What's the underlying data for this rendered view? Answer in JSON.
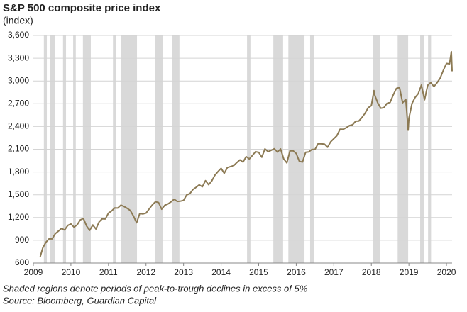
{
  "chart_data": {
    "type": "line",
    "title": "S&P 500 composite price index",
    "subtitle": "(index)",
    "notes": [
      "Shaded regions denote periods of peak-to-trough declines in excess of 5%",
      "Source: Bloomberg, Guardian Capital"
    ],
    "color": "#8c7a54",
    "shade_color": "#d9d9d9",
    "grid": true,
    "xlim": [
      2009,
      2020.15
    ],
    "xticks": [
      2009,
      2010,
      2011,
      2012,
      2013,
      2014,
      2015,
      2016,
      2017,
      2018,
      2019,
      2020
    ],
    "ylim": [
      600,
      3600
    ],
    "yticks": [
      600,
      900,
      {
        "value": 1200,
        "label": "1,200"
      },
      {
        "value": 1500,
        "label": "1,500"
      },
      {
        "value": 1800,
        "label": "1,800"
      },
      {
        "value": 2100,
        "label": "2,100"
      },
      {
        "value": 2400,
        "label": "2,400"
      },
      {
        "value": 2700,
        "label": "2,700"
      },
      {
        "value": 3000,
        "label": "3,000"
      },
      {
        "value": 3300,
        "label": "3,300"
      },
      {
        "value": 3600,
        "label": "3,600"
      }
    ],
    "shaded_regions": [
      [
        2009.28,
        2009.36
      ],
      [
        2009.45,
        2009.57
      ],
      [
        2009.79,
        2009.87
      ],
      [
        2010.06,
        2010.13
      ],
      [
        2010.32,
        2010.53
      ],
      [
        2011.12,
        2011.21
      ],
      [
        2011.33,
        2011.76
      ],
      [
        2012.25,
        2012.44
      ],
      [
        2012.7,
        2012.89
      ],
      [
        2014.69,
        2014.78
      ],
      [
        2015.39,
        2015.65
      ],
      [
        2015.79,
        2016.22
      ],
      [
        2016.37,
        2016.47
      ],
      [
        2018.05,
        2018.24
      ],
      [
        2018.7,
        2018.98
      ],
      [
        2019.3,
        2019.4
      ],
      [
        2019.51,
        2019.59
      ]
    ],
    "x": [
      2009.18,
      2009.25,
      2009.333,
      2009.417,
      2009.5,
      2009.583,
      2009.667,
      2009.75,
      2009.833,
      2009.917,
      2010.0,
      2010.083,
      2010.167,
      2010.25,
      2010.333,
      2010.417,
      2010.5,
      2010.583,
      2010.667,
      2010.75,
      2010.833,
      2010.917,
      2011.0,
      2011.083,
      2011.167,
      2011.25,
      2011.333,
      2011.417,
      2011.5,
      2011.583,
      2011.667,
      2011.75,
      2011.833,
      2011.917,
      2012.0,
      2012.083,
      2012.167,
      2012.25,
      2012.333,
      2012.417,
      2012.5,
      2012.583,
      2012.667,
      2012.75,
      2012.833,
      2012.917,
      2013.0,
      2013.083,
      2013.167,
      2013.25,
      2013.333,
      2013.417,
      2013.5,
      2013.583,
      2013.667,
      2013.75,
      2013.833,
      2013.917,
      2014.0,
      2014.083,
      2014.167,
      2014.25,
      2014.333,
      2014.417,
      2014.5,
      2014.583,
      2014.667,
      2014.75,
      2014.833,
      2014.917,
      2015.0,
      2015.083,
      2015.167,
      2015.25,
      2015.333,
      2015.417,
      2015.5,
      2015.583,
      2015.667,
      2015.75,
      2015.833,
      2015.917,
      2016.0,
      2016.083,
      2016.167,
      2016.25,
      2016.333,
      2016.417,
      2016.5,
      2016.583,
      2016.667,
      2016.75,
      2016.833,
      2016.917,
      2017.0,
      2017.083,
      2017.167,
      2017.25,
      2017.333,
      2017.417,
      2017.5,
      2017.583,
      2017.667,
      2017.75,
      2017.833,
      2017.917,
      2018.0,
      2018.07,
      2018.083,
      2018.167,
      2018.25,
      2018.333,
      2018.417,
      2018.5,
      2018.583,
      2018.667,
      2018.75,
      2018.833,
      2018.917,
      2018.98,
      2019.0,
      2019.083,
      2019.167,
      2019.25,
      2019.333,
      2019.417,
      2019.5,
      2019.583,
      2019.667,
      2019.75,
      2019.833,
      2019.917,
      2020.0,
      2020.083,
      2020.13,
      2020.15
    ],
    "values": [
      677,
      798,
      873,
      919,
      919,
      987,
      1021,
      1057,
      1036,
      1096,
      1115,
      1074,
      1104,
      1169,
      1187,
      1089,
      1031,
      1102,
      1049,
      1141,
      1183,
      1181,
      1258,
      1286,
      1327,
      1326,
      1364,
      1345,
      1321,
      1292,
      1219,
      1131,
      1253,
      1247,
      1258,
      1312,
      1366,
      1408,
      1398,
      1310,
      1362,
      1379,
      1407,
      1441,
      1412,
      1416,
      1426,
      1498,
      1515,
      1569,
      1598,
      1631,
      1606,
      1686,
      1633,
      1682,
      1757,
      1806,
      1848,
      1783,
      1859,
      1872,
      1884,
      1924,
      1960,
      1931,
      2003,
      1972,
      2018,
      2068,
      2059,
      1995,
      2105,
      2068,
      2086,
      2107,
      2063,
      2104,
      1972,
      1920,
      2079,
      2080,
      2044,
      1940,
      1932,
      2060,
      2065,
      2097,
      2099,
      2174,
      2171,
      2168,
      2126,
      2199,
      2239,
      2279,
      2364,
      2363,
      2384,
      2412,
      2423,
      2470,
      2472,
      2519,
      2575,
      2648,
      2674,
      2873,
      2824,
      2714,
      2641,
      2648,
      2705,
      2718,
      2816,
      2902,
      2914,
      2712,
      2760,
      2351,
      2507,
      2704,
      2784,
      2834,
      2946,
      2752,
      2942,
      2980,
      2926,
      2977,
      3038,
      3141,
      3231,
      3226,
      3386,
      3128
    ]
  }
}
